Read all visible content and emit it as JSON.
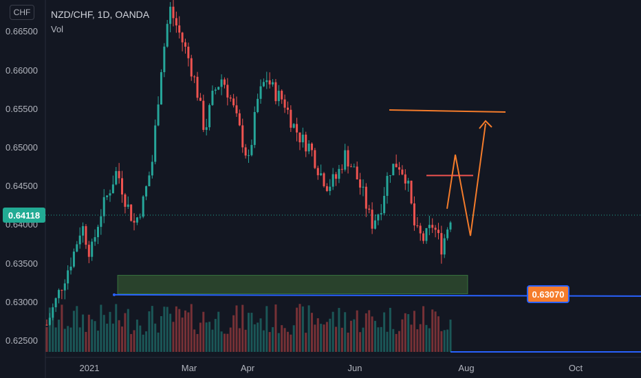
{
  "header": {
    "symbol_line": "NZD/CHF, 1D, OANDA",
    "volume_label": "Vol"
  },
  "currency_button": "CHF",
  "last_price_label": "0.64118",
  "level_label": "0.63070",
  "colors": {
    "up": "#26a69a",
    "down": "#ef5350",
    "projection": "#f57c2b",
    "support_zone": "#2e4a2e",
    "support_line": "#2962ff",
    "background": "#131722"
  },
  "chart_data": {
    "type": "candlestick",
    "title": "NZD/CHF, 1D, OANDA",
    "yaxis": {
      "ticks": [
        "0.66500",
        "0.66000",
        "0.65500",
        "0.65000",
        "0.64500",
        "0.64000",
        "0.63500",
        "0.63000",
        "0.62500"
      ],
      "range": [
        0.622,
        0.669
      ]
    },
    "xaxis": {
      "ticks": [
        "2021",
        "Mar",
        "Apr",
        "Jun",
        "Aug",
        "Oct"
      ]
    },
    "last_price": 0.64118,
    "horizontal_levels": [
      {
        "name": "resistance",
        "value": 0.6546,
        "color": "#f57c2b"
      },
      {
        "name": "minor resistance",
        "value": 0.6463,
        "color": "#ef5350"
      },
      {
        "name": "support",
        "value": 0.6307,
        "color": "#2962ff"
      }
    ],
    "support_zone": {
      "low": 0.631,
      "high": 0.6334
    },
    "projection_path": [
      0.642,
      0.649,
      0.6385,
      0.653
    ],
    "series": [
      {
        "name": "price_path",
        "values": [
          0.627,
          0.63,
          0.633,
          0.636,
          0.64,
          0.636,
          0.641,
          0.644,
          0.647,
          0.643,
          0.64,
          0.643,
          0.648,
          0.66,
          0.668,
          0.665,
          0.662,
          0.658,
          0.652,
          0.657,
          0.659,
          0.656,
          0.652,
          0.648,
          0.656,
          0.659,
          0.657,
          0.656,
          0.653,
          0.651,
          0.65,
          0.647,
          0.645,
          0.646,
          0.649,
          0.647,
          0.644,
          0.64,
          0.642,
          0.647,
          0.648,
          0.646,
          0.639,
          0.638,
          0.64,
          0.637,
          0.641
        ]
      }
    ]
  }
}
